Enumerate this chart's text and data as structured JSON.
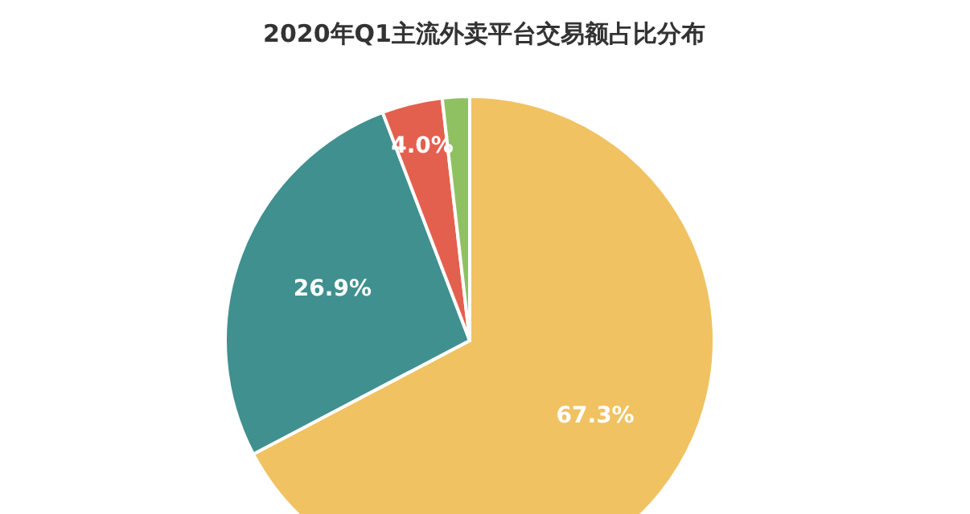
{
  "chart_data": {
    "type": "pie",
    "title": "2020年Q1主流外卖平台交易额占比分布",
    "categories": [
      null,
      null,
      null,
      null
    ],
    "values": [
      67.3,
      26.9,
      4.0,
      1.8
    ],
    "colors": [
      "#f0c262",
      "#40908f",
      "#e4604e",
      "#8fc163"
    ],
    "value_labels": [
      "67.3%",
      "26.9%",
      "4.0%",
      null
    ]
  }
}
